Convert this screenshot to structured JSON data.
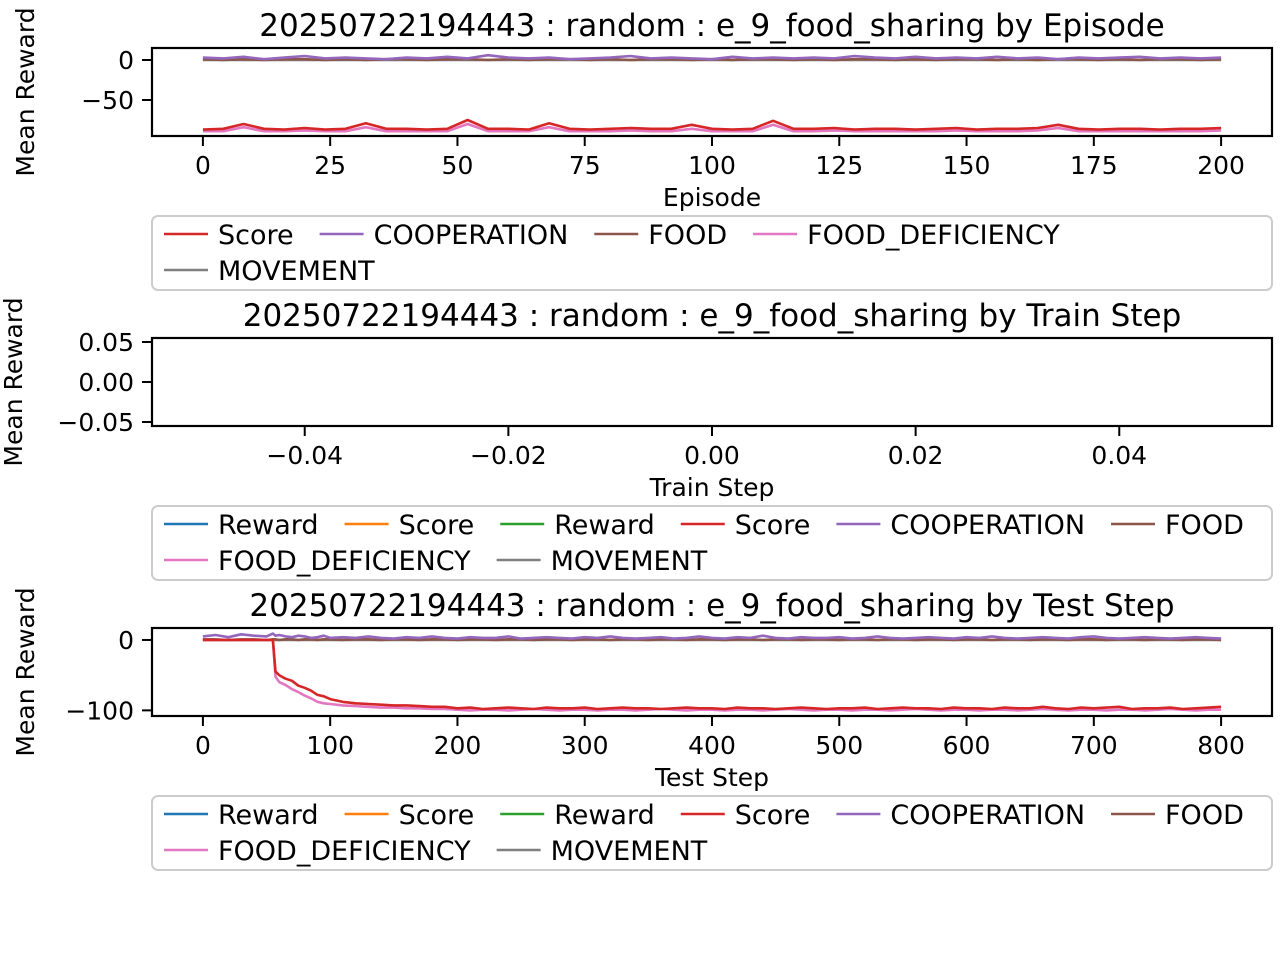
{
  "chart_data": [
    {
      "type": "line",
      "title": "20250722194443 : random : e_9_food_sharing by Episode",
      "xlabel": "Episode",
      "ylabel": "Mean Reward",
      "xlim": [
        -10,
        210
      ],
      "ylim": [
        -95,
        15
      ],
      "xticks": [
        0,
        25,
        50,
        75,
        100,
        125,
        150,
        175,
        200
      ],
      "xtick_labels": [
        "0",
        "25",
        "50",
        "75",
        "100",
        "125",
        "150",
        "175",
        "200"
      ],
      "yticks": [
        0,
        -50
      ],
      "ytick_labels": [
        "0",
        "−50"
      ],
      "grid": false,
      "legend_position": "top-right",
      "x": [
        0,
        4,
        8,
        12,
        16,
        20,
        24,
        28,
        32,
        36,
        40,
        44,
        48,
        52,
        56,
        60,
        64,
        68,
        72,
        76,
        80,
        84,
        88,
        92,
        96,
        100,
        104,
        108,
        112,
        116,
        120,
        124,
        128,
        132,
        136,
        140,
        144,
        148,
        152,
        156,
        160,
        164,
        168,
        172,
        176,
        180,
        184,
        188,
        192,
        196,
        200
      ],
      "series": [
        {
          "name": "Score",
          "color": "#d62728",
          "values": [
            -87,
            -86,
            -80,
            -86,
            -87,
            -85,
            -87,
            -86,
            -79,
            -86,
            -86,
            -87,
            -86,
            -75,
            -86,
            -86,
            -87,
            -79,
            -86,
            -87,
            -86,
            -85,
            -86,
            -86,
            -81,
            -86,
            -87,
            -86,
            -76,
            -86,
            -86,
            -85,
            -87,
            -86,
            -86,
            -87,
            -86,
            -85,
            -87,
            -86,
            -86,
            -85,
            -81,
            -86,
            -87,
            -86,
            -86,
            -87,
            -86,
            -86,
            -85
          ]
        },
        {
          "name": "COOPERATION",
          "color": "#9467bd",
          "values": [
            3,
            2,
            4,
            1,
            3,
            5,
            2,
            3,
            2,
            1,
            3,
            2,
            4,
            2,
            6,
            3,
            2,
            3,
            1,
            2,
            3,
            5,
            2,
            3,
            2,
            1,
            4,
            2,
            3,
            2,
            3,
            2,
            5,
            3,
            2,
            4,
            2,
            3,
            2,
            4,
            2,
            3,
            1,
            3,
            2,
            3,
            4,
            2,
            3,
            2,
            3
          ]
        },
        {
          "name": "FOOD",
          "color": "#8c564b",
          "values": [
            1,
            0,
            1,
            0,
            1,
            1,
            0,
            1,
            0,
            1,
            1,
            0,
            1,
            1,
            0,
            1,
            0,
            1,
            1,
            0,
            1,
            0,
            1,
            1,
            0,
            1,
            0,
            1,
            1,
            0,
            1,
            0,
            1,
            1,
            0,
            1,
            0,
            1,
            1,
            0,
            1,
            0,
            1,
            1,
            0,
            1,
            0,
            1,
            1,
            0,
            1
          ]
        },
        {
          "name": "FOOD_DEFICIENCY",
          "color": "#e377c2",
          "values": [
            -89,
            -89,
            -84,
            -89,
            -89,
            -88,
            -89,
            -89,
            -84,
            -89,
            -89,
            -89,
            -89,
            -80,
            -89,
            -89,
            -89,
            -84,
            -89,
            -89,
            -89,
            -88,
            -89,
            -89,
            -86,
            -89,
            -89,
            -89,
            -81,
            -89,
            -89,
            -88,
            -89,
            -89,
            -89,
            -89,
            -89,
            -88,
            -89,
            -89,
            -89,
            -88,
            -85,
            -89,
            -89,
            -89,
            -89,
            -89,
            -89,
            -89,
            -88
          ]
        },
        {
          "name": "MOVEMENT",
          "color": "#7f7f7f",
          "values": [
            0,
            0,
            0,
            0,
            0,
            0,
            0,
            0,
            0,
            0,
            0,
            0,
            0,
            0,
            0,
            0,
            0,
            0,
            0,
            0,
            0,
            0,
            0,
            0,
            0,
            0,
            0,
            0,
            0,
            0,
            0,
            0,
            0,
            0,
            0,
            0,
            0,
            0,
            0,
            0,
            0,
            0,
            0,
            0,
            0,
            0,
            0,
            0,
            0,
            0,
            0
          ]
        }
      ],
      "legend": [
        {
          "label": "Score",
          "color": "#d62728"
        },
        {
          "label": "COOPERATION",
          "color": "#9467bd"
        },
        {
          "label": "FOOD",
          "color": "#8c564b"
        },
        {
          "label": "FOOD_DEFICIENCY",
          "color": "#e377c2"
        },
        {
          "label": "MOVEMENT",
          "color": "#7f7f7f"
        }
      ]
    },
    {
      "type": "line",
      "title": "20250722194443 : random : e_9_food_sharing by Train Step",
      "xlabel": "Train Step",
      "ylabel": "Mean Reward",
      "xlim": [
        -0.055,
        0.055
      ],
      "ylim": [
        -0.055,
        0.055
      ],
      "xticks": [
        -0.04,
        -0.02,
        0.0,
        0.02,
        0.04
      ],
      "xtick_labels": [
        "−0.04",
        "−0.02",
        "0.00",
        "0.02",
        "0.04"
      ],
      "yticks": [
        0.05,
        0.0,
        -0.05
      ],
      "ytick_labels": [
        "0.05",
        "0.00",
        "−0.05"
      ],
      "grid": false,
      "legend_position": "right",
      "x": [],
      "series": [],
      "legend": [
        {
          "label": "Reward",
          "color": "#1f77b4"
        },
        {
          "label": "Score",
          "color": "#ff7f0e"
        },
        {
          "label": "Reward",
          "color": "#2ca02c"
        },
        {
          "label": "Score",
          "color": "#d62728"
        },
        {
          "label": "COOPERATION",
          "color": "#9467bd"
        },
        {
          "label": "FOOD",
          "color": "#8c564b"
        },
        {
          "label": "FOOD_DEFICIENCY",
          "color": "#e377c2"
        },
        {
          "label": "MOVEMENT",
          "color": "#7f7f7f"
        }
      ]
    },
    {
      "type": "line",
      "title": "20250722194443 : random : e_9_food_sharing by Test Step",
      "xlabel": "Test Step",
      "ylabel": "Mean Reward",
      "xlim": [
        -40,
        840
      ],
      "ylim": [
        -108,
        17
      ],
      "xticks": [
        0,
        100,
        200,
        300,
        400,
        500,
        600,
        700,
        800
      ],
      "xtick_labels": [
        "0",
        "100",
        "200",
        "300",
        "400",
        "500",
        "600",
        "700",
        "800"
      ],
      "yticks": [
        0,
        -100
      ],
      "ytick_labels": [
        "0",
        "−100"
      ],
      "grid": false,
      "legend_position": "right",
      "x": [
        0,
        10,
        20,
        30,
        40,
        50,
        55,
        57,
        60,
        65,
        70,
        75,
        80,
        85,
        90,
        95,
        100,
        110,
        120,
        130,
        140,
        150,
        160,
        170,
        180,
        190,
        200,
        210,
        220,
        230,
        240,
        250,
        260,
        270,
        280,
        290,
        300,
        310,
        320,
        330,
        340,
        350,
        360,
        370,
        380,
        390,
        400,
        410,
        420,
        430,
        440,
        450,
        460,
        470,
        480,
        490,
        500,
        510,
        520,
        530,
        540,
        550,
        560,
        570,
        580,
        590,
        600,
        610,
        620,
        630,
        640,
        650,
        660,
        670,
        680,
        690,
        700,
        710,
        720,
        730,
        740,
        750,
        760,
        770,
        780,
        790,
        800
      ],
      "series": [
        {
          "name": "Score",
          "color": "#d62728",
          "values": [
            0,
            0,
            0,
            0,
            0,
            0,
            0,
            -45,
            -50,
            -55,
            -58,
            -65,
            -68,
            -72,
            -78,
            -80,
            -84,
            -88,
            -90,
            -91,
            -92,
            -93,
            -93,
            -94,
            -95,
            -95,
            -97,
            -96,
            -98,
            -97,
            -96,
            -97,
            -98,
            -96,
            -97,
            -97,
            -96,
            -98,
            -97,
            -96,
            -97,
            -97,
            -98,
            -97,
            -96,
            -97,
            -97,
            -98,
            -96,
            -97,
            -97,
            -98,
            -97,
            -96,
            -97,
            -98,
            -97,
            -97,
            -96,
            -98,
            -97,
            -96,
            -97,
            -97,
            -98,
            -96,
            -97,
            -97,
            -98,
            -96,
            -97,
            -97,
            -95,
            -97,
            -98,
            -96,
            -97,
            -96,
            -95,
            -98,
            -97,
            -97,
            -96,
            -98,
            -97,
            -96,
            -95
          ]
        },
        {
          "name": "COOPERATION",
          "color": "#9467bd",
          "values": [
            5,
            7,
            4,
            8,
            6,
            5,
            9,
            6,
            7,
            5,
            4,
            6,
            5,
            3,
            4,
            6,
            3,
            4,
            3,
            5,
            3,
            2,
            4,
            3,
            5,
            3,
            2,
            4,
            3,
            3,
            5,
            2,
            3,
            4,
            3,
            2,
            4,
            3,
            5,
            3,
            2,
            3,
            4,
            2,
            3,
            5,
            3,
            2,
            4,
            3,
            6,
            3,
            2,
            4,
            3,
            3,
            4,
            2,
            3,
            5,
            3,
            2,
            3,
            4,
            3,
            2,
            4,
            3,
            5,
            3,
            2,
            3,
            4,
            3,
            2,
            4,
            5,
            3,
            2,
            3,
            4,
            3,
            2,
            3,
            4,
            3,
            2
          ]
        },
        {
          "name": "FOOD",
          "color": "#8c564b",
          "values": [
            1,
            1,
            0,
            1,
            1,
            0,
            1,
            1,
            0,
            1,
            1,
            0,
            1,
            1,
            0,
            1,
            1,
            0,
            1,
            1,
            0,
            1,
            1,
            0,
            1,
            1,
            0,
            1,
            1,
            0,
            1,
            1,
            0,
            1,
            1,
            0,
            1,
            1,
            0,
            1,
            1,
            0,
            1,
            1,
            0,
            1,
            1,
            0,
            1,
            1,
            0,
            1,
            1,
            0,
            1,
            1,
            0,
            1,
            1,
            0,
            1,
            1,
            0,
            1,
            1,
            0,
            1,
            1,
            0,
            1,
            1,
            0,
            1,
            1,
            0,
            1,
            1,
            0,
            1,
            1,
            0,
            1,
            1,
            0,
            1,
            1,
            0
          ]
        },
        {
          "name": "FOOD_DEFICIENCY",
          "color": "#e377c2",
          "values": [
            0,
            0,
            0,
            0,
            0,
            0,
            0,
            -52,
            -60,
            -64,
            -70,
            -74,
            -79,
            -83,
            -88,
            -90,
            -91,
            -93,
            -94,
            -95,
            -96,
            -96,
            -97,
            -97,
            -98,
            -98,
            -99,
            -100,
            -99,
            -99,
            -100,
            -99,
            -98,
            -99,
            -100,
            -99,
            -99,
            -100,
            -99,
            -99,
            -100,
            -99,
            -98,
            -99,
            -100,
            -99,
            -99,
            -100,
            -99,
            -99,
            -100,
            -99,
            -98,
            -99,
            -100,
            -99,
            -99,
            -100,
            -99,
            -99,
            -100,
            -99,
            -98,
            -99,
            -100,
            -99,
            -99,
            -100,
            -99,
            -99,
            -100,
            -99,
            -98,
            -99,
            -100,
            -99,
            -99,
            -100,
            -99,
            -99,
            -100,
            -99,
            -98,
            -99,
            -100,
            -99,
            -99
          ]
        },
        {
          "name": "MOVEMENT",
          "color": "#7f7f7f",
          "values": [
            0,
            0,
            0,
            0,
            0,
            0,
            0,
            0,
            0,
            0,
            0,
            0,
            0,
            0,
            0,
            0,
            0,
            0,
            0,
            0,
            0,
            0,
            0,
            0,
            0,
            0,
            0,
            0,
            0,
            0,
            0,
            0,
            0,
            0,
            0,
            0,
            0,
            0,
            0,
            0,
            0,
            0,
            0,
            0,
            0,
            0,
            0,
            0,
            0,
            0,
            0,
            0,
            0,
            0,
            0,
            0,
            0,
            0,
            0,
            0,
            0,
            0,
            0,
            0,
            0,
            0,
            0,
            0,
            0,
            0,
            0,
            0,
            0,
            0,
            0,
            0,
            0,
            0,
            0,
            0,
            0,
            0,
            0,
            0,
            0,
            0,
            0
          ]
        }
      ],
      "legend": [
        {
          "label": "Reward",
          "color": "#1f77b4"
        },
        {
          "label": "Score",
          "color": "#ff7f0e"
        },
        {
          "label": "Reward",
          "color": "#2ca02c"
        },
        {
          "label": "Score",
          "color": "#d62728"
        },
        {
          "label": "COOPERATION",
          "color": "#9467bd"
        },
        {
          "label": "FOOD",
          "color": "#8c564b"
        },
        {
          "label": "FOOD_DEFICIENCY",
          "color": "#e377c2"
        },
        {
          "label": "MOVEMENT",
          "color": "#7f7f7f"
        }
      ]
    }
  ]
}
